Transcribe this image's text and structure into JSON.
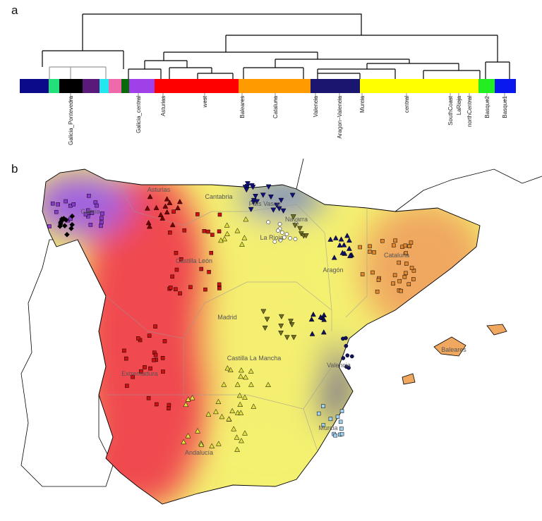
{
  "panels": {
    "a": "a",
    "b": "b"
  },
  "clusters": [
    {
      "color": "#0a0a8a",
      "label": ""
    },
    {
      "color": "#22e07a",
      "label": ""
    },
    {
      "color": "#000000",
      "label": "Galicia_Pontevedra"
    },
    {
      "color": "#5a1a7a",
      "label": ""
    },
    {
      "color": "#22e6f0",
      "label": ""
    },
    {
      "color": "#ee6aaa",
      "label": ""
    },
    {
      "color": "#0a6a0a",
      "label": ""
    },
    {
      "color": "#a040e8",
      "label": "Galicia_central"
    },
    {
      "color": "#ff0000",
      "label": "Asturias"
    },
    {
      "color": "#ff0000",
      "label": "west"
    },
    {
      "color": "#ff9a00",
      "label": "Baleares"
    },
    {
      "color": "#ff9a00",
      "label": "Cataluna"
    },
    {
      "color": "#1a1670",
      "label": "Valencia"
    },
    {
      "color": "#1a1670",
      "label": "Aragon−Valencia"
    },
    {
      "color": "#ffff00",
      "label": "Murcia"
    },
    {
      "color": "#ffff00",
      "label": "central"
    },
    {
      "color": "#ffff00",
      "label": "SouthCoast"
    },
    {
      "color": "#ffff00",
      "label": "LaRioja"
    },
    {
      "color": "#ffff00",
      "label": "northCentral"
    },
    {
      "color": "#22ee22",
      "label": "Basque2"
    },
    {
      "color": "#0a18f0",
      "label": "Basque1"
    }
  ],
  "regions": [
    "Asturias",
    "Cantabria",
    "País Vasco",
    "Navarra",
    "Galicia",
    "La Rioja",
    "Castilla León",
    "Aragón",
    "Cataluña",
    "Madrid",
    "Castilla La Mancha",
    "Extremadura",
    "Valencia",
    "Baleares",
    "Murcia",
    "Andalucía"
  ],
  "map_colors": {
    "galicia": "#a060e0",
    "west": "#f04a50",
    "central": "#f4f070",
    "catalonia": "#f0a860",
    "north": "#8090c0",
    "valencia": "#504a90"
  }
}
